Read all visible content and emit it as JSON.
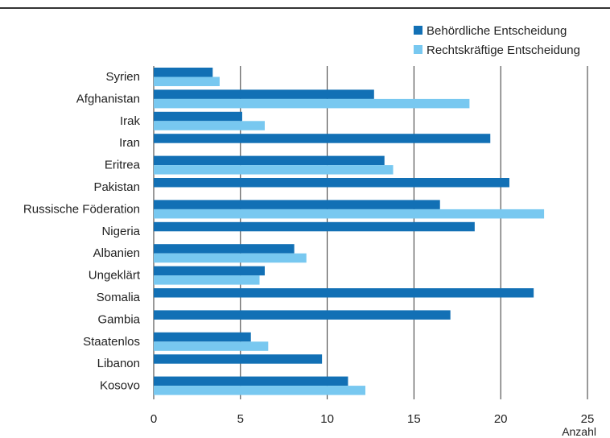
{
  "chart_data": {
    "type": "bar",
    "orientation": "horizontal",
    "title": "",
    "xlabel": "Anzahl",
    "ylabel": "",
    "xlim": [
      0,
      25
    ],
    "xticks": [
      0,
      5,
      10,
      15,
      20,
      25
    ],
    "grid": "vertical",
    "legend_position": "top-right",
    "categories": [
      "Syrien",
      "Afghanistan",
      "Irak",
      "Iran",
      "Eritrea",
      "Pakistan",
      "Russische Föderation",
      "Nigeria",
      "Albanien",
      "Ungeklärt",
      "Somalia",
      "Gambia",
      "Staatenlos",
      "Libanon",
      "Kosovo"
    ],
    "series": [
      {
        "name": "Behördliche Entscheidung",
        "color": "#1270b5",
        "values": [
          3.4,
          12.7,
          5.1,
          19.4,
          13.3,
          20.5,
          16.5,
          18.5,
          8.1,
          6.4,
          21.9,
          17.1,
          5.6,
          9.7,
          11.2
        ]
      },
      {
        "name": "Rechtskräftige Entscheidung",
        "color": "#78c8f0",
        "values": [
          3.8,
          18.2,
          6.4,
          null,
          13.8,
          null,
          22.5,
          null,
          8.8,
          6.1,
          null,
          null,
          6.6,
          null,
          12.2
        ]
      }
    ]
  }
}
